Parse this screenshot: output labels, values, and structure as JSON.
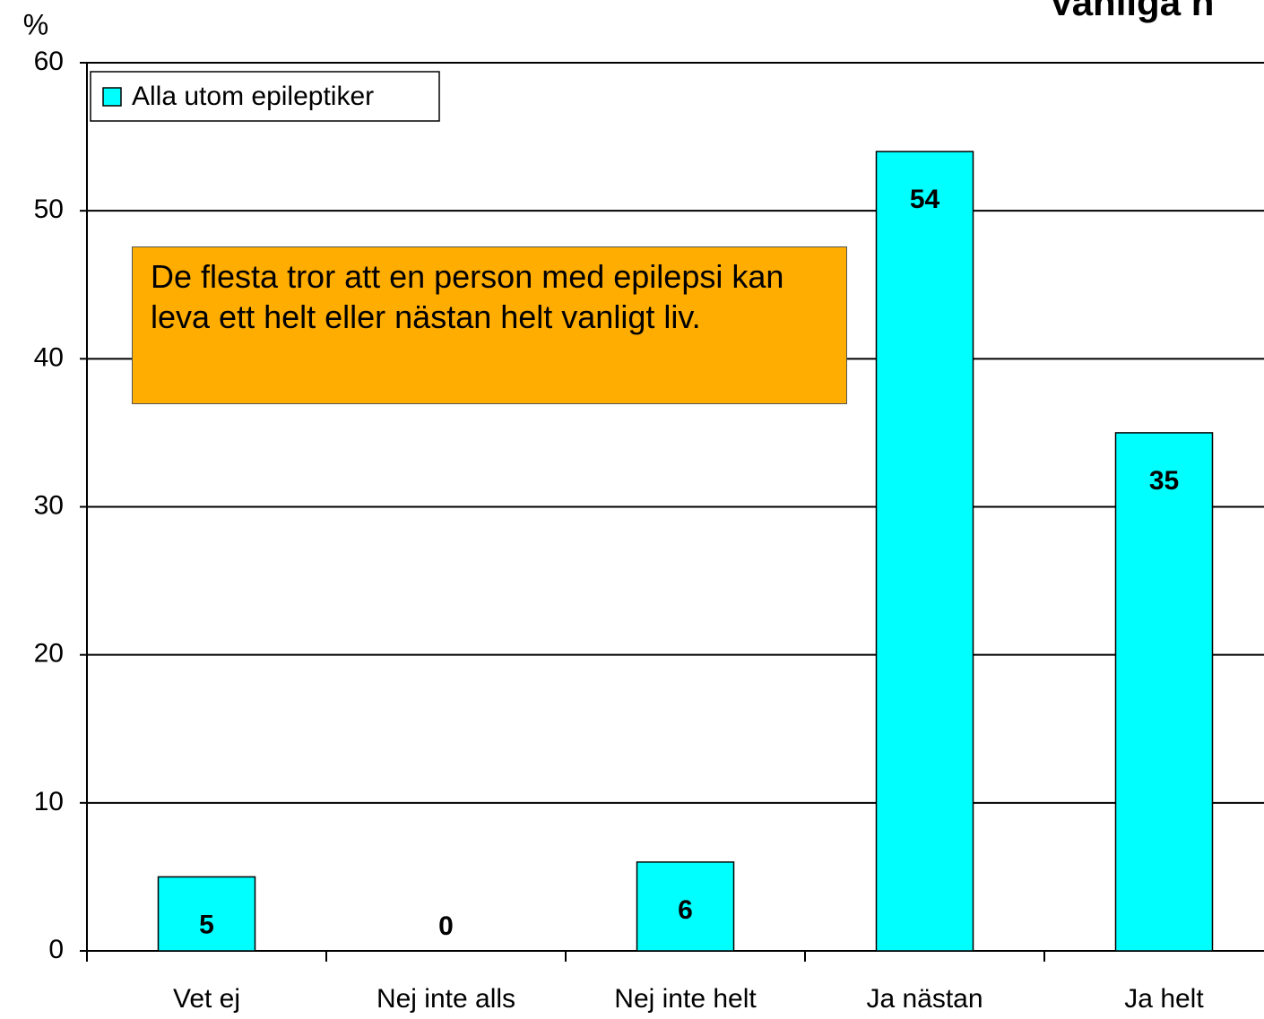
{
  "chart_data": {
    "type": "bar",
    "title": "Vanliga n",
    "y_label": "%",
    "categories": [
      "Vet ej",
      "Nej inte alls",
      "Nej inte helt",
      "Ja nästan",
      "Ja helt"
    ],
    "series": [
      {
        "name": "Alla utom epileptiker",
        "color": "#00ffff",
        "values": [
          5,
          0,
          6,
          54,
          35
        ]
      }
    ],
    "ylim": [
      0,
      60
    ],
    "yticks": [
      0,
      10,
      20,
      30,
      40,
      50,
      60
    ],
    "grid": true,
    "legend": "upper left",
    "annotation": "De flesta tror att en person med epilepsi kan leva ett helt eller nästan helt vanligt liv."
  }
}
